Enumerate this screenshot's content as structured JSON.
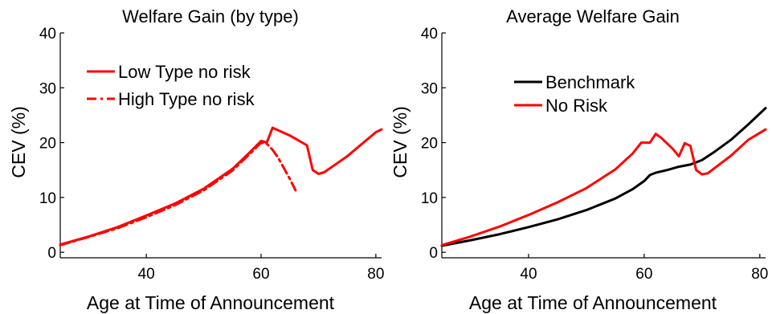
{
  "chart_data": [
    {
      "type": "line",
      "title": "Welfare Gain (by type)",
      "xlabel": "Age at Time of Announcement",
      "ylabel": "CEV (%)",
      "xlim": [
        25,
        81
      ],
      "ylim": [
        -1,
        40
      ],
      "xticks": [
        40,
        60,
        80
      ],
      "yticks": [
        0,
        10,
        20,
        30,
        40
      ],
      "grid": false,
      "legend_position": "top-left",
      "series": [
        {
          "name": "Low Type no risk",
          "color": "#ff0000",
          "dash": "solid",
          "x": [
            25,
            30,
            35,
            40,
            45,
            50,
            55,
            58,
            60,
            61,
            62,
            65,
            68,
            69,
            70,
            71,
            75,
            80,
            81
          ],
          "y": [
            1.4,
            2.9,
            4.6,
            6.7,
            8.9,
            11.6,
            15.2,
            18.2,
            20.3,
            20.0,
            22.7,
            21.3,
            19.5,
            15.0,
            14.3,
            14.6,
            17.5,
            21.9,
            22.4
          ]
        },
        {
          "name": "High Type no risk",
          "color": "#ff0000",
          "dash": "dashdot",
          "x": [
            25,
            30,
            35,
            40,
            45,
            50,
            55,
            58,
            60,
            61,
            62,
            63,
            64,
            65,
            66
          ],
          "y": [
            1.3,
            2.8,
            4.4,
            6.4,
            8.6,
            11.3,
            14.9,
            17.9,
            20.0,
            19.8,
            18.7,
            17.2,
            15.3,
            13.4,
            11.3
          ]
        }
      ]
    },
    {
      "type": "line",
      "title": "Average Welfare Gain",
      "xlabel": "Age at Time of Announcement",
      "ylabel": "CEV (%)",
      "xlim": [
        25,
        81
      ],
      "ylim": [
        -1,
        40
      ],
      "xticks": [
        40,
        60,
        80
      ],
      "yticks": [
        0,
        10,
        20,
        30,
        40
      ],
      "grid": false,
      "legend_position": "top-left",
      "series": [
        {
          "name": "Benchmark",
          "color": "#000000",
          "dash": "solid",
          "x": [
            25,
            30,
            35,
            40,
            45,
            50,
            55,
            58,
            60,
            61,
            62,
            64,
            66,
            68,
            70,
            72,
            75,
            78,
            81
          ],
          "y": [
            1.2,
            2.2,
            3.3,
            4.6,
            6.0,
            7.7,
            9.8,
            11.5,
            13.0,
            14.1,
            14.5,
            15.0,
            15.6,
            16.0,
            16.8,
            18.2,
            20.5,
            23.3,
            26.3
          ]
        },
        {
          "name": "No Risk",
          "color": "#ff0000",
          "dash": "solid",
          "x": [
            25,
            30,
            35,
            40,
            45,
            50,
            55,
            58,
            59.5,
            61,
            62,
            63,
            65,
            66,
            67,
            68,
            69,
            70,
            71,
            75,
            78,
            81
          ],
          "y": [
            1.3,
            2.9,
            4.7,
            6.8,
            9.1,
            11.7,
            15.1,
            18.0,
            20.0,
            20.0,
            21.6,
            20.8,
            18.8,
            17.5,
            19.9,
            19.4,
            15.0,
            14.2,
            14.4,
            17.6,
            20.5,
            22.4
          ]
        }
      ]
    }
  ]
}
